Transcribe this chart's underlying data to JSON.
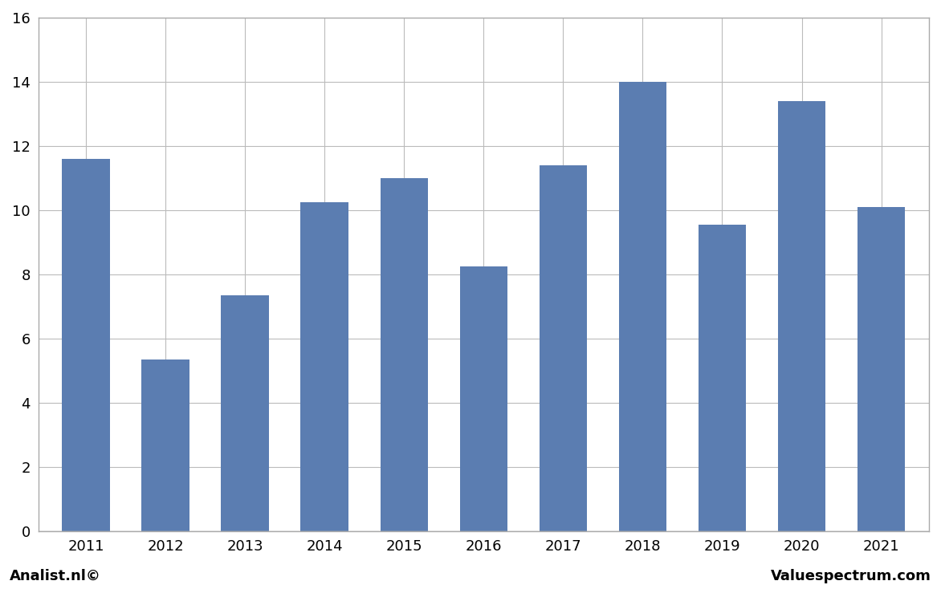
{
  "categories": [
    "2011",
    "2012",
    "2013",
    "2014",
    "2015",
    "2016",
    "2017",
    "2018",
    "2019",
    "2020",
    "2021"
  ],
  "values": [
    11.6,
    5.35,
    7.35,
    10.25,
    11.0,
    8.25,
    11.4,
    14.0,
    9.55,
    13.4,
    10.1
  ],
  "bar_color": "#5b7db1",
  "ylim": [
    0,
    16
  ],
  "yticks": [
    0,
    2,
    4,
    6,
    8,
    10,
    12,
    14,
    16
  ],
  "background_color": "#ffffff",
  "plot_bg_color": "#ffffff",
  "grid_color": "#bbbbbb",
  "border_color": "#aaaaaa",
  "footer_left": "Analist.nl©",
  "footer_right": "Valuespectrum.com",
  "footer_fontsize": 13,
  "bar_width": 0.6
}
